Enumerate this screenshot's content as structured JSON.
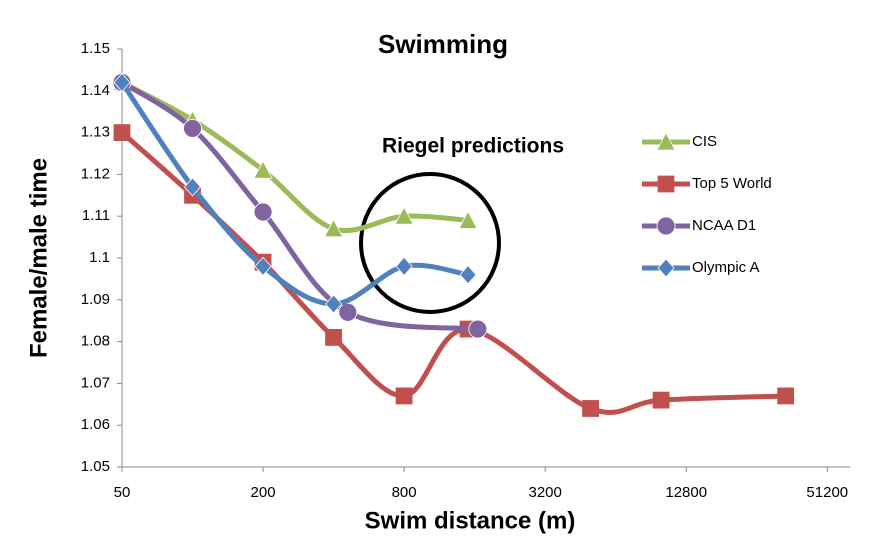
{
  "chart_data": {
    "type": "line",
    "title": "Swimming",
    "x_label": "Swim distance (m)",
    "y_label": "Female/male time",
    "annotation": "Riegel predictions",
    "xscale": "log",
    "xlim": [
      50,
      64000
    ],
    "xticks": [
      50,
      200,
      800,
      3200,
      12800,
      51200
    ],
    "ylim": [
      1.05,
      1.15
    ],
    "yticks": [
      1.05,
      1.06,
      1.07,
      1.08,
      1.09,
      1.1,
      1.11,
      1.12,
      1.13,
      1.14,
      1.15
    ],
    "grid": false,
    "legend": "right",
    "series": [
      {
        "name": "CIS",
        "color": "#9bbb59",
        "marker": "triangle",
        "x": [
          50,
          100,
          200,
          400,
          800,
          1500
        ],
        "values": [
          1.142,
          1.133,
          1.121,
          1.107,
          1.11,
          1.109
        ]
      },
      {
        "name": "Top 5 World",
        "color": "#c0504d",
        "marker": "square",
        "x": [
          50,
          100,
          200,
          400,
          800,
          1500,
          5000,
          10000,
          34000
        ],
        "values": [
          1.13,
          1.115,
          1.099,
          1.081,
          1.067,
          1.083,
          1.064,
          1.066,
          1.067
        ]
      },
      {
        "name": "NCAA D1",
        "color": "#8064a2",
        "marker": "circle",
        "x": [
          50,
          100,
          200,
          460,
          1650
        ],
        "values": [
          1.142,
          1.131,
          1.111,
          1.087,
          1.083
        ]
      },
      {
        "name": "Olympic A",
        "color": "#4f81bd",
        "marker": "diamond",
        "x": [
          50,
          100,
          200,
          400,
          800,
          1500
        ],
        "values": [
          1.142,
          1.117,
          1.098,
          1.089,
          1.098,
          1.096
        ]
      }
    ]
  }
}
